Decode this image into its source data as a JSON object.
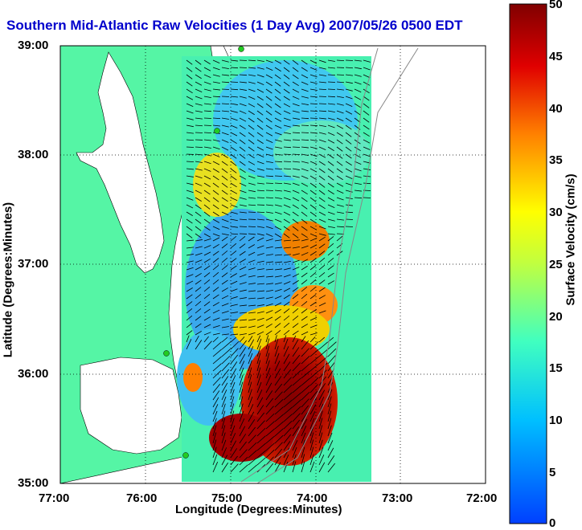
{
  "title": "Southern Mid-Atlantic Raw Velocities (1 Day Avg) 2007/05/26 0500 EDT",
  "map": {
    "xlabel": "Longitude (Degrees:Minutes)",
    "ylabel": "Latitude (Degrees:Minutes)",
    "x_ticks": [
      "77:00",
      "76:00",
      "75:00",
      "74:00",
      "73:00",
      "72:00"
    ],
    "y_ticks": [
      "39:00",
      "38:00",
      "37:00",
      "36:00",
      "35:00"
    ],
    "xlim": [
      -77,
      -72
    ],
    "ylim": [
      35,
      39
    ],
    "grid": "dotted",
    "land_color": "#55f5a5",
    "water_color": "#ffffff"
  },
  "colorbar": {
    "label": "Surface Velocity (cm/s)",
    "ticks": [
      "50",
      "45",
      "40",
      "35",
      "30",
      "25",
      "20",
      "15",
      "10",
      "5",
      "0"
    ],
    "range": [
      0,
      50
    ],
    "colormap": "jet"
  }
}
